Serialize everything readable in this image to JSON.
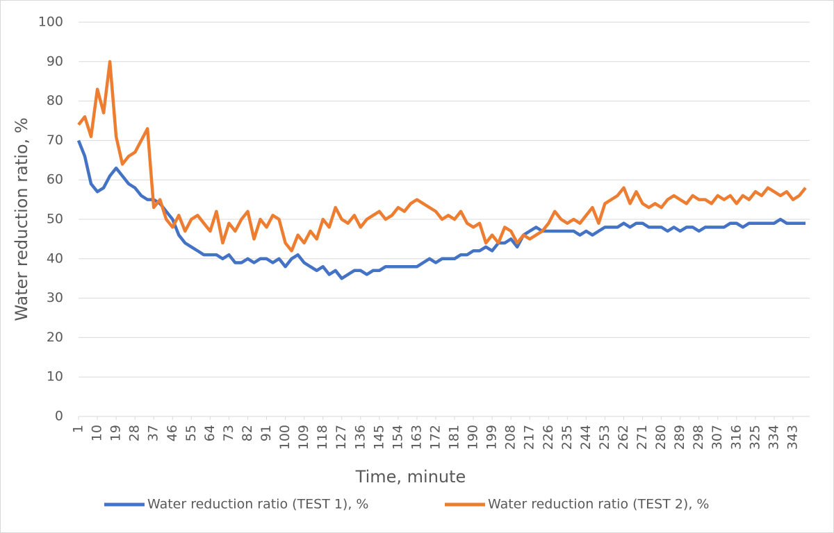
{
  "chart_data": {
    "type": "line",
    "x_label": "Time, minute",
    "y_label": "Water reduction ratio, %",
    "xlim": [
      1,
      351
    ],
    "ylim": [
      0,
      100
    ],
    "xticks": [
      1,
      10,
      19,
      28,
      37,
      46,
      55,
      64,
      73,
      82,
      91,
      100,
      109,
      118,
      127,
      136,
      145,
      154,
      163,
      172,
      181,
      190,
      199,
      208,
      217,
      226,
      235,
      244,
      253,
      262,
      271,
      280,
      289,
      298,
      307,
      316,
      325,
      334,
      343
    ],
    "yticks": [
      0,
      10,
      20,
      30,
      40,
      50,
      60,
      70,
      80,
      90,
      100
    ],
    "grid": true,
    "legend": "bottom",
    "x": [
      1,
      4,
      7,
      10,
      13,
      16,
      19,
      22,
      25,
      28,
      31,
      34,
      37,
      40,
      43,
      46,
      49,
      52,
      55,
      58,
      61,
      64,
      67,
      70,
      73,
      76,
      79,
      82,
      85,
      88,
      91,
      94,
      97,
      100,
      103,
      106,
      109,
      112,
      115,
      118,
      121,
      124,
      127,
      130,
      133,
      136,
      139,
      142,
      145,
      148,
      151,
      154,
      157,
      160,
      163,
      166,
      169,
      172,
      175,
      178,
      181,
      184,
      187,
      190,
      193,
      196,
      199,
      202,
      205,
      208,
      211,
      214,
      217,
      220,
      223,
      226,
      229,
      232,
      235,
      238,
      241,
      244,
      247,
      250,
      253,
      256,
      259,
      262,
      265,
      268,
      271,
      274,
      277,
      280,
      283,
      286,
      289,
      292,
      295,
      298,
      301,
      304,
      307,
      310,
      313,
      316,
      319,
      322,
      325,
      328,
      331,
      334,
      337,
      340,
      343,
      346,
      349
    ],
    "series": [
      {
        "name": "Water reduction ratio (TEST 1), %",
        "color": "#4472c4",
        "values": [
          70,
          66,
          59,
          57,
          58,
          61,
          63,
          61,
          59,
          58,
          56,
          55,
          55,
          54,
          52,
          50,
          46,
          44,
          43,
          42,
          41,
          41,
          41,
          40,
          41,
          39,
          39,
          40,
          39,
          40,
          40,
          39,
          40,
          38,
          40,
          41,
          39,
          38,
          37,
          38,
          36,
          37,
          35,
          36,
          37,
          37,
          36,
          37,
          37,
          38,
          38,
          38,
          38,
          38,
          38,
          39,
          40,
          39,
          40,
          40,
          40,
          41,
          41,
          42,
          42,
          43,
          42,
          44,
          44,
          45,
          43,
          46,
          47,
          48,
          47,
          47,
          47,
          47,
          47,
          47,
          46,
          47,
          46,
          47,
          48,
          48,
          48,
          49,
          48,
          49,
          49,
          48,
          48,
          48,
          47,
          48,
          47,
          48,
          48,
          47,
          48,
          48,
          48,
          48,
          49,
          49,
          48,
          49,
          49,
          49,
          49,
          49,
          50,
          49,
          49,
          49,
          49
        ]
      },
      {
        "name": "Water reduction ratio (TEST 2), %",
        "color": "#ed7d31",
        "values": [
          74,
          76,
          71,
          83,
          77,
          90,
          71,
          64,
          66,
          67,
          70,
          73,
          53,
          55,
          50,
          48,
          51,
          47,
          50,
          51,
          49,
          47,
          52,
          44,
          49,
          47,
          50,
          52,
          45,
          50,
          48,
          51,
          50,
          44,
          42,
          46,
          44,
          47,
          45,
          50,
          48,
          53,
          50,
          49,
          51,
          48,
          50,
          51,
          52,
          50,
          51,
          53,
          52,
          54,
          55,
          54,
          53,
          52,
          50,
          51,
          50,
          52,
          49,
          48,
          49,
          44,
          46,
          44,
          48,
          47,
          44,
          46,
          45,
          46,
          47,
          49,
          52,
          50,
          49,
          50,
          49,
          51,
          53,
          49,
          54,
          55,
          56,
          58,
          54,
          57,
          54,
          53,
          54,
          53,
          55,
          56,
          55,
          54,
          56,
          55,
          55,
          54,
          56,
          55,
          56,
          54,
          56,
          55,
          57,
          56,
          58,
          57,
          56,
          57,
          55,
          56,
          58
        ]
      }
    ]
  }
}
